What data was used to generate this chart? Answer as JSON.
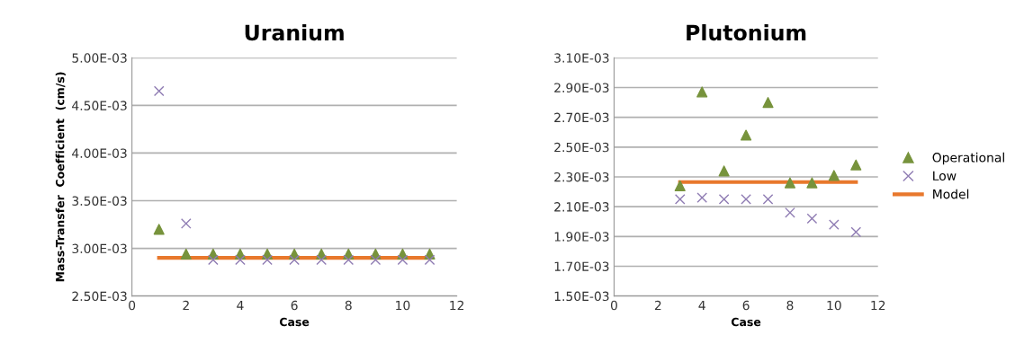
{
  "chart_data": [
    {
      "type": "scatter",
      "title": "Uranium",
      "xlabel": "Case",
      "ylabel": "Mass-Transfer  Coefficient  (cm/s)",
      "xlim": [
        0,
        12
      ],
      "xticks": [
        0,
        2,
        4,
        6,
        8,
        10,
        12
      ],
      "ylim": [
        0.0025,
        0.005
      ],
      "yticks": [
        {
          "value": 0.0025,
          "label": "2.50E-03"
        },
        {
          "value": 0.003,
          "label": "3.00E-03"
        },
        {
          "value": 0.0035,
          "label": "3.50E-03"
        },
        {
          "value": 0.004,
          "label": "4.00E-03"
        },
        {
          "value": 0.0045,
          "label": "4.50E-03"
        },
        {
          "value": 0.005,
          "label": "5.00E-03"
        }
      ],
      "grid": "y",
      "legend": false,
      "series": [
        {
          "marker": "triangle",
          "color": "#77933c",
          "x": [
            1,
            2,
            3,
            4,
            5,
            6,
            7,
            8,
            9,
            10,
            11
          ],
          "values": [
            0.0032,
            0.00294,
            0.00294,
            0.00294,
            0.00294,
            0.00294,
            0.00294,
            0.00294,
            0.00294,
            0.00294,
            0.00294
          ]
        },
        {
          "marker": "cross",
          "color": "#8f7cb3",
          "x": [
            1,
            2,
            3,
            4,
            5,
            6,
            7,
            8,
            9,
            10,
            11
          ],
          "values": [
            0.00465,
            0.00326,
            0.00288,
            0.00288,
            0.00288,
            0.00288,
            0.00288,
            0.00288,
            0.00288,
            0.00288,
            0.00288
          ]
        },
        {
          "type": "line",
          "marker": "none",
          "color": "#e8782c",
          "x": [
            1,
            11
          ],
          "values": [
            0.0029,
            0.0029
          ]
        }
      ]
    },
    {
      "type": "scatter",
      "title": "Plutonium",
      "xlabel": "Case",
      "xlim": [
        0,
        12
      ],
      "xticks": [
        0,
        2,
        4,
        6,
        8,
        10,
        12
      ],
      "ylim": [
        0.0015,
        0.0031
      ],
      "yticks": [
        {
          "value": 0.0015,
          "label": "1.50E-03"
        },
        {
          "value": 0.0017,
          "label": "1.70E-03"
        },
        {
          "value": 0.0019,
          "label": "1.90E-03"
        },
        {
          "value": 0.0021,
          "label": "2.10E-03"
        },
        {
          "value": 0.0023,
          "label": "2.30E-03"
        },
        {
          "value": 0.0025,
          "label": "2.50E-03"
        },
        {
          "value": 0.0027,
          "label": "2.70E-03"
        },
        {
          "value": 0.0029,
          "label": "2.90E-03"
        },
        {
          "value": 0.0031,
          "label": "3.10E-03"
        }
      ],
      "grid": "y",
      "legend": "right",
      "series": [
        {
          "name": "Operational",
          "marker": "triangle",
          "color": "#77933c",
          "x": [
            3,
            4,
            5,
            6,
            7,
            8,
            9,
            10,
            11
          ],
          "values": [
            0.00224,
            0.00287,
            0.00234,
            0.00258,
            0.0028,
            0.00226,
            0.00226,
            0.00231,
            0.00238
          ]
        },
        {
          "name": "Low",
          "marker": "cross",
          "color": "#8f7cb3",
          "x": [
            3,
            4,
            5,
            6,
            7,
            8,
            9,
            10,
            11
          ],
          "values": [
            0.00215,
            0.00216,
            0.00215,
            0.00215,
            0.00215,
            0.00206,
            0.00202,
            0.00198,
            0.00193
          ]
        },
        {
          "name": "Model",
          "type": "line",
          "marker": "none",
          "color": "#e8782c",
          "x": [
            3,
            11
          ],
          "values": [
            0.002265,
            0.002265
          ]
        }
      ]
    }
  ]
}
